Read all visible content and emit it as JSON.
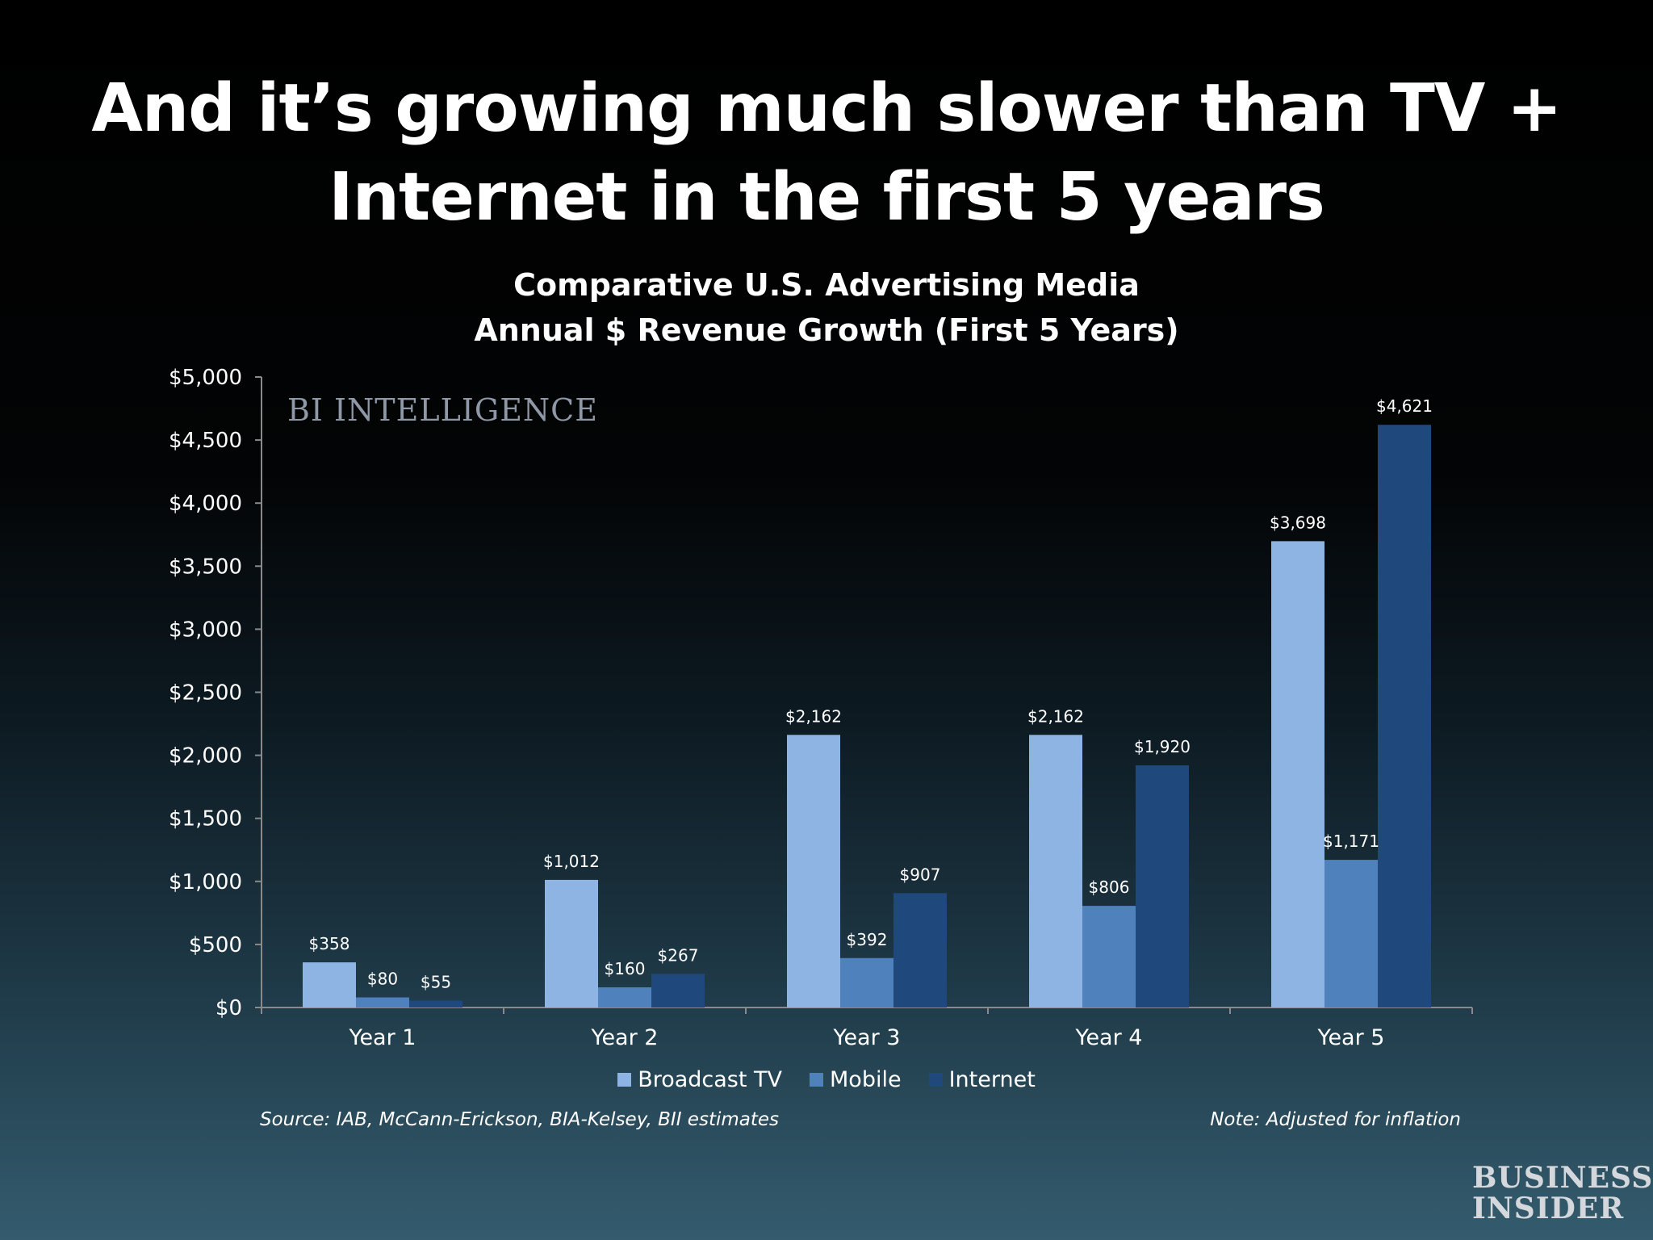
{
  "slide": {
    "title_line1": "And it’s growing much slower than TV +",
    "title_line2": "Internet in the first 5 years"
  },
  "watermark": "BI INTELLIGENCE",
  "source": "Source:  IAB, McCann-Erickson, BIA-Kelsey, BII estimates",
  "note": "Note: Adjusted for inflation",
  "logo": {
    "line1": "BUSINESS",
    "line2": "INSIDER"
  },
  "chart_data": {
    "type": "bar",
    "title_line1": "Comparative U.S. Advertising Media",
    "title_line2": "Annual $ Revenue Growth (First 5 Years)",
    "categories": [
      "Year 1",
      "Year 2",
      "Year 3",
      "Year 4",
      "Year 5"
    ],
    "series": [
      {
        "name": "Broadcast TV",
        "color": "#8db4e2",
        "values": [
          358,
          1012,
          2162,
          2162,
          3698
        ],
        "labels": [
          "$358",
          "$1,012",
          "$2,162",
          "$2,162",
          "$3,698"
        ]
      },
      {
        "name": "Mobile",
        "color": "#4f81bd",
        "values": [
          80,
          160,
          392,
          806,
          1171
        ],
        "labels": [
          "$80",
          "$160",
          "$392",
          "$806",
          "$1,171"
        ]
      },
      {
        "name": "Internet",
        "color": "#1f497d",
        "values": [
          55,
          267,
          907,
          1920,
          4621
        ],
        "labels": [
          "$55",
          "$267",
          "$907",
          "$1,920",
          "$4,621"
        ]
      }
    ],
    "ylim": [
      0,
      5000
    ],
    "y_ticks": [
      0,
      500,
      1000,
      1500,
      2000,
      2500,
      3000,
      3500,
      4000,
      4500,
      5000
    ],
    "y_tick_labels": [
      "$0",
      "$500",
      "$1,000",
      "$1,500",
      "$2,000",
      "$2,500",
      "$3,000",
      "$3,500",
      "$4,000",
      "$4,500",
      "$5,000"
    ],
    "legend_position": "bottom",
    "grid": false
  }
}
